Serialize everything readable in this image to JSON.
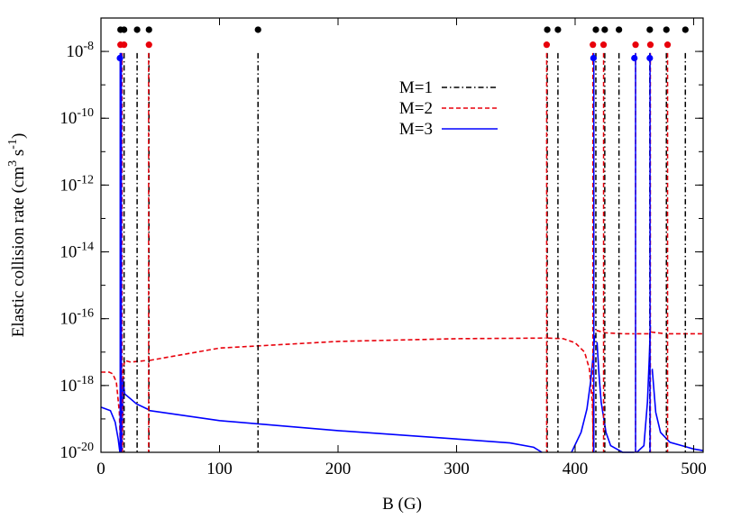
{
  "chart_data": {
    "type": "line",
    "xlabel": "B (G)",
    "ylabel": "Elastic collision rate (cm³ s⁻¹)",
    "ylabel_parts": [
      "Elastic collision rate (cm",
      "3",
      " s",
      "-1",
      ")"
    ],
    "xlim": [
      0,
      508
    ],
    "ylim_log10": [
      -20,
      -7
    ],
    "y_scale": "log",
    "x_ticks": [
      0,
      100,
      200,
      300,
      400,
      500
    ],
    "x_tick_labels": [
      "0",
      "100",
      "200",
      "300",
      "400",
      "500"
    ],
    "y_ticks": [
      {
        "mantissa": "10",
        "exponent": "-8",
        "log10": -8
      },
      {
        "mantissa": "10",
        "exponent": "-10",
        "log10": -10
      },
      {
        "mantissa": "10",
        "exponent": "-12",
        "log10": -12
      },
      {
        "mantissa": "10",
        "exponent": "-14",
        "log10": -14
      },
      {
        "mantissa": "10",
        "exponent": "-16",
        "log10": -16
      },
      {
        "mantissa": "10",
        "exponent": "-18",
        "log10": -18
      },
      {
        "mantissa": "10",
        "exponent": "-20",
        "log10": -20
      }
    ],
    "legend_position": "top-right",
    "grid": false,
    "series": [
      {
        "name": "M=1",
        "color": "#000000",
        "dash": "dash-dot",
        "resonances_G": [
          16.5,
          19.5,
          30.5,
          40.5,
          132.5,
          376.5,
          385.5,
          417.5,
          425,
          437,
          463,
          477,
          493
        ]
      },
      {
        "name": "M=2",
        "color": "#e8000b",
        "dash": "dashed",
        "background": [
          [
            0,
            -17.6
          ],
          [
            7,
            -17.6
          ],
          [
            10,
            -17.65
          ],
          [
            13,
            -17.9
          ],
          [
            15.5,
            -18.8
          ],
          [
            16.5,
            -20
          ]
        ],
        "background_2": [
          [
            18,
            -20
          ],
          [
            18.8,
            -17.5
          ],
          [
            20,
            -17.25
          ],
          [
            25,
            -17.3
          ],
          [
            39,
            -17.25
          ]
        ],
        "background_3": [
          [
            41,
            -17.25
          ],
          [
            100,
            -16.88
          ],
          [
            200,
            -16.68
          ],
          [
            300,
            -16.6
          ],
          [
            375,
            -16.58
          ]
        ],
        "background_4": [
          [
            377,
            -16.58
          ],
          [
            390,
            -16.6
          ],
          [
            400,
            -16.72
          ],
          [
            408,
            -17.0
          ],
          [
            412,
            -17.5
          ],
          [
            414.5,
            -18.5
          ],
          [
            415.5,
            -20
          ]
        ],
        "background_5": [
          [
            418,
            -16.35
          ],
          [
            425,
            -16.42
          ],
          [
            440,
            -16.45
          ],
          [
            450,
            -16.45
          ]
        ],
        "background_6": [
          [
            452,
            -16.45
          ],
          [
            462,
            -16.45
          ]
        ],
        "background_7": [
          [
            464,
            -16.4
          ],
          [
            476,
            -16.45
          ]
        ],
        "background_8": [
          [
            479,
            -16.45
          ],
          [
            508,
            -16.45
          ]
        ],
        "resonances_G": [
          16.8,
          17.8,
          40.2,
          376,
          415,
          424,
          451,
          463.5,
          478
        ]
      },
      {
        "name": "M=3",
        "color": "#0000ff",
        "dash": "solid",
        "background": [
          [
            0,
            -18.65
          ],
          [
            8,
            -18.75
          ],
          [
            12,
            -19.1
          ],
          [
            14.5,
            -19.6
          ],
          [
            16,
            -20
          ]
        ],
        "background_2": [
          [
            17.5,
            -20
          ],
          [
            18.5,
            -17.8
          ],
          [
            20,
            -18.25
          ],
          [
            30,
            -18.55
          ],
          [
            40,
            -18.72
          ]
        ],
        "background_3": [
          [
            41,
            -18.75
          ],
          [
            100,
            -19.05
          ],
          [
            200,
            -19.35
          ],
          [
            300,
            -19.6
          ],
          [
            345,
            -19.72
          ],
          [
            365,
            -19.85
          ],
          [
            372,
            -20
          ]
        ],
        "background_4": [
          [
            397,
            -20
          ],
          [
            405,
            -19.4
          ],
          [
            410,
            -18.7
          ],
          [
            413,
            -17.9
          ],
          [
            415,
            -17.2
          ],
          [
            416.5,
            -16.5
          ]
        ],
        "background_5": [
          [
            418.5,
            -16.7
          ],
          [
            420,
            -17.6
          ],
          [
            422,
            -18.5
          ],
          [
            426,
            -19.4
          ],
          [
            430,
            -19.8
          ],
          [
            440,
            -20
          ],
          [
            450,
            -20
          ]
        ],
        "background_6": [
          [
            452,
            -20
          ],
          [
            458,
            -19.8
          ],
          [
            461,
            -18.5
          ],
          [
            462.5,
            -17.2
          ],
          [
            463.5,
            -16.2
          ]
        ],
        "background_7": [
          [
            465,
            -17.5
          ],
          [
            468,
            -18.8
          ],
          [
            472,
            -19.4
          ],
          [
            480,
            -19.7
          ],
          [
            500,
            -19.9
          ],
          [
            508,
            -19.95
          ]
        ],
        "resonances_G": [
          16.2,
          17.2,
          415.8,
          451,
          463.2
        ]
      }
    ],
    "markers": {
      "rows": [
        {
          "series": "M=1",
          "color": "#000000",
          "log10": -7.35,
          "x": [
            16.5,
            19.5,
            30.5,
            40.5,
            132.5,
            376.5,
            385.5,
            417.5,
            425,
            437,
            463,
            477,
            493
          ]
        },
        {
          "series": "M=2",
          "color": "#e8000b",
          "log10": -7.8,
          "x": [
            16.5,
            19.5,
            40.5,
            376,
            415,
            424,
            451,
            463.5,
            478
          ]
        },
        {
          "series": "M=3",
          "color": "#0000ff",
          "log10": -8.2,
          "x": [
            16,
            415.5,
            450,
            463
          ]
        }
      ]
    }
  }
}
